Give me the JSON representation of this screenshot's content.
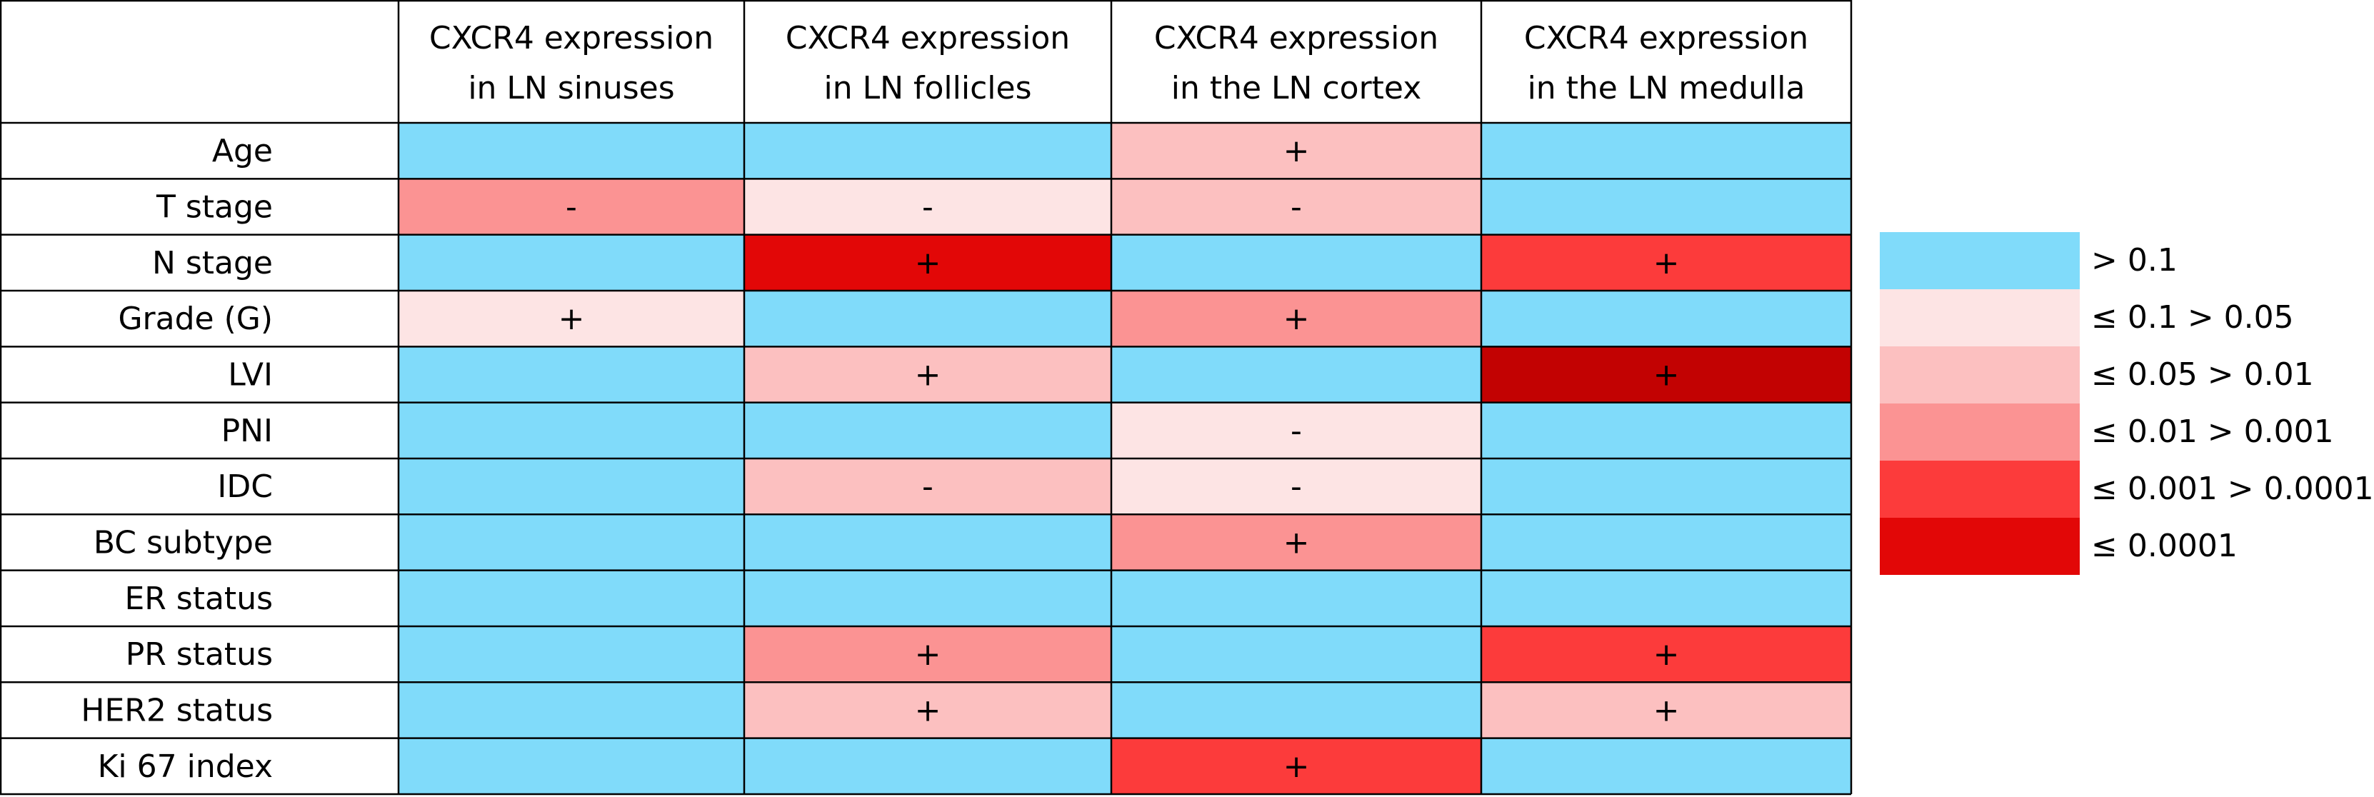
{
  "chart_data": {
    "type": "heatmap",
    "columns": [
      "CXCR4 expression in LN sinuses",
      "CXCR4 expression in LN follicles",
      "CXCR4 expression in the LN cortex",
      "CXCR4 expression in the LN medulla"
    ],
    "column_lines": [
      [
        "CXCR4 expression",
        "in LN sinuses"
      ],
      [
        "CXCR4 expression",
        "in LN follicles"
      ],
      [
        "CXCR4 expression",
        "in the LN cortex"
      ],
      [
        "CXCR4 expression",
        "in the LN medulla"
      ]
    ],
    "rows": [
      "Age",
      "T stage",
      "N stage",
      "Grade (G)",
      "LVI",
      "PNI",
      "IDC",
      "BC subtype",
      "ER status",
      "PR status",
      "HER2 status",
      "Ki 67 index"
    ],
    "bins": [
      {
        "label": "> 0.1",
        "color": "#80DBFA"
      },
      {
        "label": "≤ 0.1 > 0.05",
        "color": "#FDE4E4"
      },
      {
        "label": "≤ 0.05 > 0.01",
        "color": "#FCC0C0"
      },
      {
        "label": "≤ 0.01 > 0.001",
        "color": "#FB9393"
      },
      {
        "label": "≤ 0.001 > 0.0001",
        "color": "#FC3B3B"
      },
      {
        "label": "≤ 0.0001",
        "color": "#E20707"
      }
    ],
    "extra_colors": {
      "darkest": "#C20202"
    },
    "cells": [
      [
        {
          "bin": 0,
          "sign": ""
        },
        {
          "bin": 0,
          "sign": ""
        },
        {
          "bin": 2,
          "sign": "+"
        },
        {
          "bin": 0,
          "sign": ""
        }
      ],
      [
        {
          "bin": 3,
          "sign": "-"
        },
        {
          "bin": 1,
          "sign": "-"
        },
        {
          "bin": 2,
          "sign": "-"
        },
        {
          "bin": 0,
          "sign": ""
        }
      ],
      [
        {
          "bin": 0,
          "sign": ""
        },
        {
          "bin": 5,
          "sign": "+"
        },
        {
          "bin": 0,
          "sign": ""
        },
        {
          "bin": 4,
          "sign": "+"
        }
      ],
      [
        {
          "bin": 1,
          "sign": "+"
        },
        {
          "bin": 0,
          "sign": ""
        },
        {
          "bin": 3,
          "sign": "+"
        },
        {
          "bin": 0,
          "sign": ""
        }
      ],
      [
        {
          "bin": 0,
          "sign": ""
        },
        {
          "bin": 2,
          "sign": "+"
        },
        {
          "bin": 0,
          "sign": ""
        },
        {
          "bin": 5,
          "sign": "+",
          "color": "#C20202"
        }
      ],
      [
        {
          "bin": 0,
          "sign": ""
        },
        {
          "bin": 0,
          "sign": ""
        },
        {
          "bin": 1,
          "sign": "-"
        },
        {
          "bin": 0,
          "sign": ""
        }
      ],
      [
        {
          "bin": 0,
          "sign": ""
        },
        {
          "bin": 2,
          "sign": "-"
        },
        {
          "bin": 1,
          "sign": "-"
        },
        {
          "bin": 0,
          "sign": ""
        }
      ],
      [
        {
          "bin": 0,
          "sign": ""
        },
        {
          "bin": 0,
          "sign": ""
        },
        {
          "bin": 3,
          "sign": "+"
        },
        {
          "bin": 0,
          "sign": ""
        }
      ],
      [
        {
          "bin": 0,
          "sign": ""
        },
        {
          "bin": 0,
          "sign": ""
        },
        {
          "bin": 0,
          "sign": ""
        },
        {
          "bin": 0,
          "sign": ""
        }
      ],
      [
        {
          "bin": 0,
          "sign": ""
        },
        {
          "bin": 3,
          "sign": "+"
        },
        {
          "bin": 0,
          "sign": ""
        },
        {
          "bin": 4,
          "sign": "+"
        }
      ],
      [
        {
          "bin": 0,
          "sign": ""
        },
        {
          "bin": 2,
          "sign": "+"
        },
        {
          "bin": 0,
          "sign": ""
        },
        {
          "bin": 2,
          "sign": "+"
        }
      ],
      [
        {
          "bin": 0,
          "sign": ""
        },
        {
          "bin": 0,
          "sign": ""
        },
        {
          "bin": 4,
          "sign": "+"
        },
        {
          "bin": 0,
          "sign": ""
        }
      ]
    ]
  }
}
